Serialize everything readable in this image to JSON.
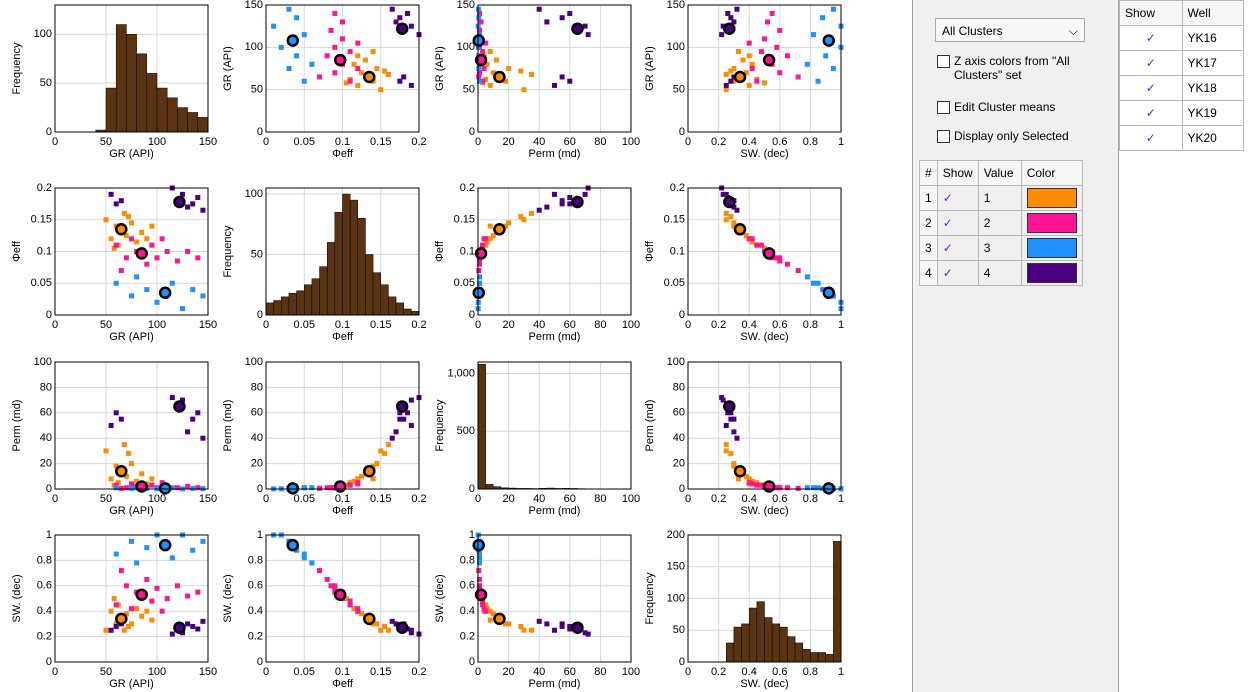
{
  "chart_data": {
    "type": "scatter_matrix",
    "frequency_label": "Frequency",
    "variables": [
      {
        "name": "GR (API)",
        "lim": [
          0,
          150
        ],
        "ticks": [
          0,
          50,
          100,
          150
        ]
      },
      {
        "name": "Φeff",
        "lim": [
          0,
          0.2
        ],
        "ticks": [
          0,
          0.05,
          0.1,
          0.15,
          0.2
        ]
      },
      {
        "name": "Perm (md)",
        "lim": [
          0,
          100
        ],
        "ticks": [
          0,
          20,
          40,
          60,
          80,
          100
        ]
      },
      {
        "name": "SW. (dec)",
        "lim": [
          0,
          1
        ],
        "ticks": [
          0,
          0.2,
          0.4,
          0.6,
          0.8,
          1
        ]
      }
    ],
    "histograms": [
      {
        "bins": [
          0,
          10,
          20,
          30,
          40,
          50,
          60,
          70,
          80,
          90,
          100,
          110,
          120,
          130,
          140,
          150
        ],
        "counts": [
          0,
          0,
          0,
          0,
          2,
          45,
          110,
          100,
          80,
          60,
          45,
          35,
          25,
          20,
          15
        ],
        "ylim": [
          0,
          130
        ],
        "yticks": [
          0,
          50,
          100
        ]
      },
      {
        "bins": [
          0,
          0.01,
          0.02,
          0.03,
          0.04,
          0.05,
          0.06,
          0.07,
          0.08,
          0.09,
          0.1,
          0.11,
          0.12,
          0.13,
          0.14,
          0.15,
          0.16,
          0.17,
          0.18,
          0.19,
          0.2
        ],
        "counts": [
          10,
          12,
          15,
          18,
          20,
          25,
          30,
          40,
          60,
          85,
          100,
          95,
          80,
          50,
          35,
          25,
          15,
          10,
          5,
          3
        ],
        "ylim": [
          0,
          105
        ],
        "yticks": [
          0,
          50,
          100
        ]
      },
      {
        "bins": [
          0,
          5,
          10,
          15,
          20,
          25,
          30,
          35,
          40,
          45,
          50,
          55,
          60,
          65,
          70,
          75,
          80,
          85,
          90,
          95,
          100
        ],
        "counts": [
          1080,
          40,
          20,
          10,
          8,
          5,
          5,
          4,
          6,
          8,
          5,
          6,
          5,
          3,
          2,
          0,
          0,
          0,
          0,
          0
        ],
        "ylim": [
          0,
          1100
        ],
        "yticks": [
          0,
          500,
          {
            "value": 1000,
            "label": "1,000"
          }
        ]
      },
      {
        "bins": [
          0,
          0.05,
          0.1,
          0.15,
          0.2,
          0.25,
          0.3,
          0.35,
          0.4,
          0.45,
          0.5,
          0.55,
          0.6,
          0.65,
          0.7,
          0.75,
          0.8,
          0.85,
          0.9,
          0.95,
          1
        ],
        "counts": [
          0,
          0,
          0,
          0,
          0,
          30,
          55,
          60,
          85,
          95,
          70,
          60,
          55,
          40,
          30,
          20,
          15,
          15,
          12,
          190
        ],
        "ylim": [
          0,
          200
        ],
        "yticks": [
          0,
          50,
          100,
          150,
          200
        ]
      }
    ],
    "clusters": [
      {
        "name": "1",
        "color": "#ff8c00",
        "mean": [
          65,
          0.135,
          14,
          0.34
        ],
        "values": [
          [
            50,
            55,
            60,
            62,
            65,
            68,
            70,
            75,
            80,
            85,
            90,
            58,
            72,
            95
          ],
          [
            0.15,
            0.12,
            0.14,
            0.11,
            0.135,
            0.16,
            0.125,
            0.145,
            0.115,
            0.13,
            0.12,
            0.105,
            0.155,
            0.14
          ],
          [
            30,
            8,
            18,
            5,
            14,
            35,
            10,
            20,
            6,
            12,
            4,
            3,
            28,
            8
          ],
          [
            0.25,
            0.4,
            0.3,
            0.45,
            0.34,
            0.25,
            0.38,
            0.3,
            0.42,
            0.36,
            0.4,
            0.5,
            0.28,
            0.33
          ]
        ]
      },
      {
        "name": "2",
        "color": "#ff1493",
        "mean": [
          85,
          0.097,
          2,
          0.53
        ],
        "values": [
          [
            60,
            70,
            75,
            80,
            85,
            90,
            95,
            100,
            110,
            120,
            130,
            140,
            65,
            105
          ],
          [
            0.11,
            0.09,
            0.12,
            0.1,
            0.097,
            0.08,
            0.11,
            0.09,
            0.1,
            0.085,
            0.1,
            0.09,
            0.07,
            0.12
          ],
          [
            3,
            1,
            4,
            2,
            2,
            1,
            3,
            1,
            2,
            1,
            2,
            1,
            0.5,
            5
          ],
          [
            0.45,
            0.6,
            0.42,
            0.55,
            0.53,
            0.65,
            0.48,
            0.58,
            0.5,
            0.6,
            0.52,
            0.55,
            0.72,
            0.4
          ]
        ]
      },
      {
        "name": "3",
        "color": "#1e90ff",
        "mean": [
          108,
          0.035,
          0.5,
          0.92
        ],
        "values": [
          [
            60,
            75,
            90,
            100,
            108,
            115,
            125,
            135,
            145,
            80
          ],
          [
            0.05,
            0.03,
            0.04,
            0.02,
            0.035,
            0.05,
            0.01,
            0.04,
            0.03,
            0.06
          ],
          [
            1,
            0.5,
            0.5,
            0.2,
            0.5,
            1,
            0.1,
            0.5,
            0.3,
            1
          ],
          [
            0.85,
            0.95,
            0.9,
            1,
            0.92,
            0.82,
            1,
            0.88,
            0.95,
            0.78
          ]
        ]
      },
      {
        "name": "4",
        "color": "#4b0082",
        "mean": [
          122,
          0.178,
          65,
          0.27
        ],
        "values": [
          [
            55,
            60,
            65,
            120,
            125,
            130,
            140,
            145,
            115,
            135
          ],
          [
            0.19,
            0.175,
            0.18,
            0.178,
            0.19,
            0.17,
            0.185,
            0.165,
            0.2,
            0.175
          ],
          [
            50,
            60,
            55,
            65,
            70,
            45,
            60,
            40,
            72,
            55
          ],
          [
            0.25,
            0.28,
            0.3,
            0.27,
            0.23,
            0.3,
            0.26,
            0.32,
            0.22,
            0.28
          ]
        ]
      }
    ]
  },
  "controls": {
    "dropdown": "All Clusters",
    "checkboxes": [
      "Z axis colors from \"All Clusters\" set",
      "Edit Cluster means",
      "Display only Selected"
    ]
  },
  "cluster_table": {
    "headers": [
      "#",
      "Show",
      "Value",
      "Color"
    ],
    "rows": [
      [
        "1",
        "1"
      ],
      [
        "2",
        "2"
      ],
      [
        "3",
        "3"
      ],
      [
        "4",
        "4"
      ]
    ]
  },
  "well_table": {
    "headers": [
      "Show",
      "Well"
    ],
    "rows": [
      "YK16",
      "YK17",
      "YK18",
      "YK19",
      "YK20"
    ]
  }
}
